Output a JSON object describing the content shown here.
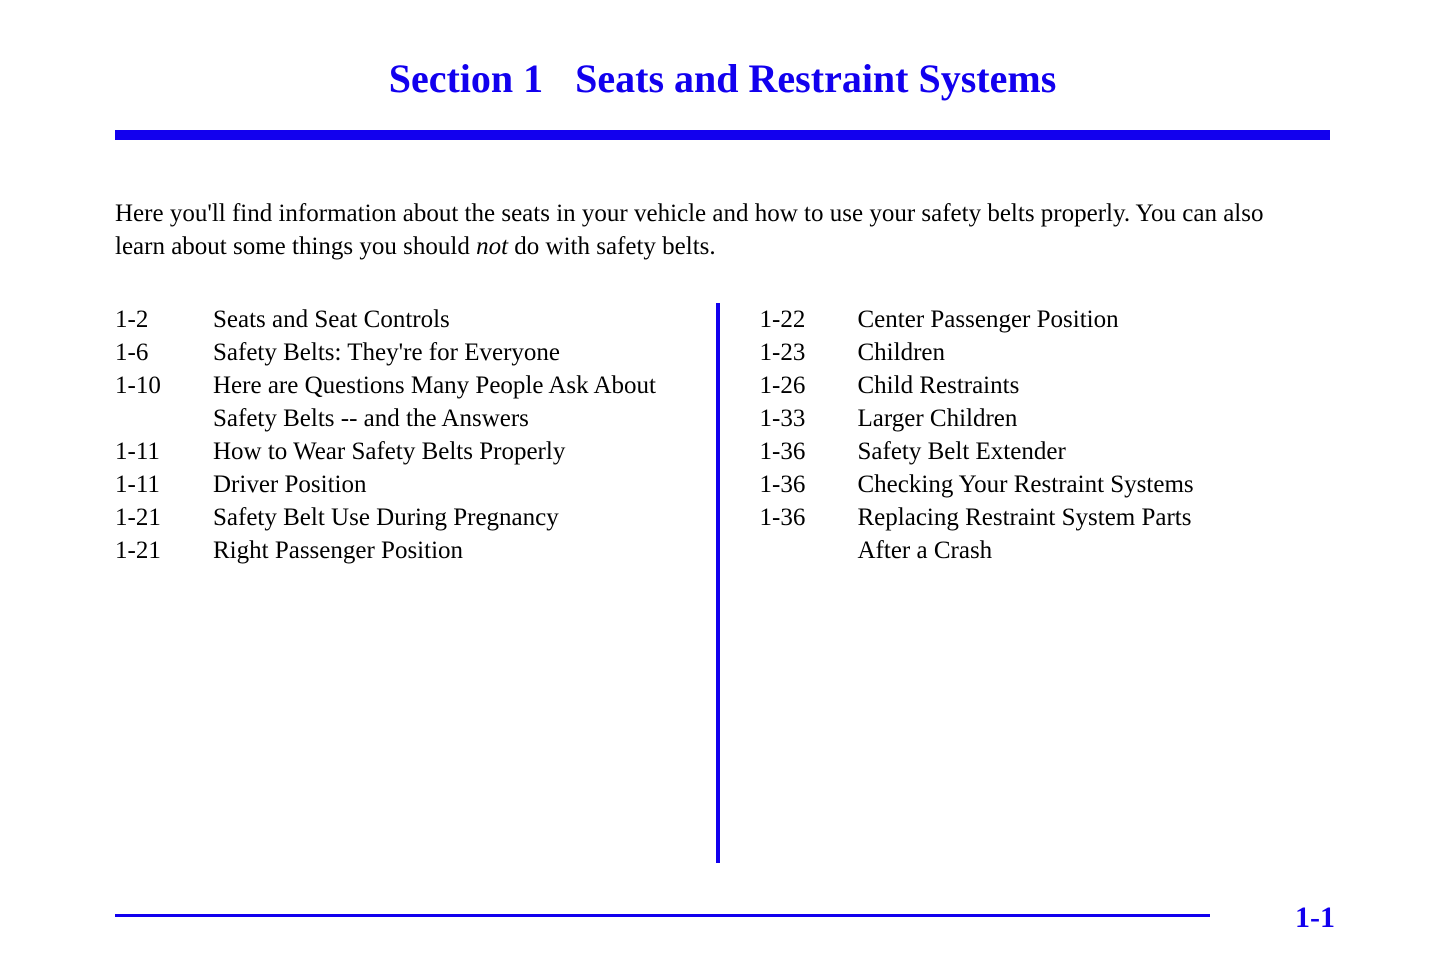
{
  "header": {
    "section_label": "Section 1",
    "section_title": "Seats and Restraint Systems"
  },
  "intro": {
    "line1": "Here you'll find information about the seats in your vehicle and how to use your safety belts properly. You can also",
    "line2a": "learn about some things you should ",
    "line2_italic": "not",
    "line2b": " do with safety belts."
  },
  "toc_left": [
    {
      "page": "1-2",
      "title": "Seats and Seat Controls"
    },
    {
      "page": "1-6",
      "title": "Safety Belts: They're for Everyone"
    },
    {
      "page": "1-10",
      "title": "Here are Questions Many People Ask About"
    },
    {
      "page": "",
      "title": "Safety Belts -- and the Answers"
    },
    {
      "page": "1-11",
      "title": "How to Wear Safety Belts Properly"
    },
    {
      "page": "1-11",
      "title": "Driver Position"
    },
    {
      "page": "1-21",
      "title": "Safety Belt Use During Pregnancy"
    },
    {
      "page": "1-21",
      "title": "Right Passenger Position"
    }
  ],
  "toc_right": [
    {
      "page": "1-22",
      "title": "Center Passenger Position"
    },
    {
      "page": "1-23",
      "title": "Children"
    },
    {
      "page": "1-26",
      "title": "Child Restraints"
    },
    {
      "page": "1-33",
      "title": "Larger Children"
    },
    {
      "page": "1-36",
      "title": "Safety Belt Extender"
    },
    {
      "page": "1-36",
      "title": "Checking Your Restraint Systems"
    },
    {
      "page": "1-36",
      "title": "Replacing Restraint System Parts"
    },
    {
      "page": "",
      "title": "After a Crash"
    }
  ],
  "footer": {
    "page_number": "1-1"
  },
  "colors": {
    "accent": "#1200ee",
    "text": "#000000",
    "background": "#ffffff"
  }
}
